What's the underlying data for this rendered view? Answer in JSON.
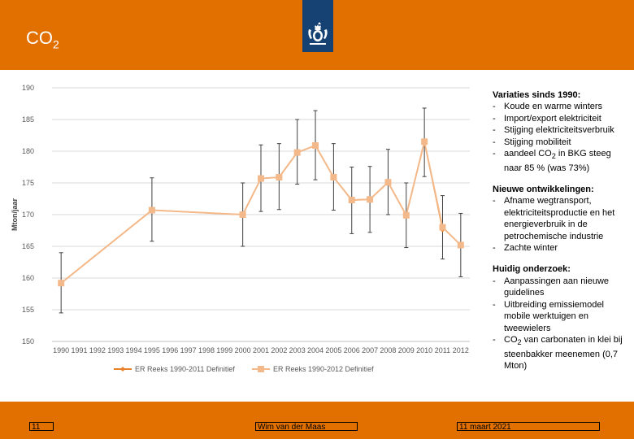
{
  "header": {
    "title_main": "CO",
    "title_sub": "2",
    "brand_color": "#E17000",
    "logo_color": "#154273"
  },
  "chart_data": {
    "type": "line",
    "ylabel": "Mton/jaar",
    "ylim": [
      150,
      190
    ],
    "yticks": [
      150,
      155,
      160,
      165,
      170,
      175,
      180,
      185,
      190
    ],
    "categories": [
      "1990",
      "1991",
      "1992",
      "1993",
      "1994",
      "1995",
      "1996",
      "1997",
      "1998",
      "1999",
      "2000",
      "2001",
      "2002",
      "2003",
      "2004",
      "2005",
      "2006",
      "2007",
      "2008",
      "2009",
      "2010",
      "2011",
      "2012"
    ],
    "series": [
      {
        "name": "ER Reeks 1990-2011 Definitief",
        "color": "#E8822A",
        "points": [
          {
            "x": "1990",
            "y": 159.2
          },
          {
            "x": "1995",
            "y": 170.7
          },
          {
            "x": "2000",
            "y": 170.0
          },
          {
            "x": "2001",
            "y": 175.7
          },
          {
            "x": "2002",
            "y": 175.9
          },
          {
            "x": "2003",
            "y": 179.8
          },
          {
            "x": "2004",
            "y": 180.9
          },
          {
            "x": "2005",
            "y": 175.9
          },
          {
            "x": "2006",
            "y": 172.3
          },
          {
            "x": "2007",
            "y": 172.4
          },
          {
            "x": "2008",
            "y": 175.1
          },
          {
            "x": "2009",
            "y": 169.9
          },
          {
            "x": "2010",
            "y": 181.5
          },
          {
            "x": "2011",
            "y": 167.6
          }
        ]
      },
      {
        "name": "ER Reeks 1990-2012 Definitief",
        "color": "#F4B98A",
        "points": [
          {
            "x": "1990",
            "y": 159.2
          },
          {
            "x": "1995",
            "y": 170.7
          },
          {
            "x": "2000",
            "y": 170.0
          },
          {
            "x": "2001",
            "y": 175.7
          },
          {
            "x": "2002",
            "y": 175.9
          },
          {
            "x": "2003",
            "y": 179.8
          },
          {
            "x": "2004",
            "y": 180.9
          },
          {
            "x": "2005",
            "y": 175.9
          },
          {
            "x": "2006",
            "y": 172.3
          },
          {
            "x": "2007",
            "y": 172.4
          },
          {
            "x": "2008",
            "y": 175.1
          },
          {
            "x": "2009",
            "y": 169.9
          },
          {
            "x": "2010",
            "y": 181.5
          },
          {
            "x": "2011",
            "y": 168.0
          },
          {
            "x": "2012",
            "y": 165.2
          }
        ]
      }
    ],
    "error_bars": [
      {
        "x": "1990",
        "low": 154.5,
        "high": 164.0
      },
      {
        "x": "1995",
        "low": 165.8,
        "high": 175.8
      },
      {
        "x": "2000",
        "low": 165.0,
        "high": 175.0
      },
      {
        "x": "2001",
        "low": 170.5,
        "high": 181.0
      },
      {
        "x": "2002",
        "low": 170.8,
        "high": 181.2
      },
      {
        "x": "2003",
        "low": 174.8,
        "high": 185.0
      },
      {
        "x": "2004",
        "low": 175.5,
        "high": 186.4
      },
      {
        "x": "2005",
        "low": 170.7,
        "high": 181.2
      },
      {
        "x": "2006",
        "low": 167.0,
        "high": 177.5
      },
      {
        "x": "2007",
        "low": 167.2,
        "high": 177.6
      },
      {
        "x": "2008",
        "low": 170.0,
        "high": 180.3
      },
      {
        "x": "2009",
        "low": 164.8,
        "high": 175.0
      },
      {
        "x": "2010",
        "low": 176.0,
        "high": 186.8
      },
      {
        "x": "2011",
        "low": 163.0,
        "high": 173.0
      },
      {
        "x": "2012",
        "low": 160.2,
        "high": 170.2
      }
    ]
  },
  "notes": {
    "section1": {
      "heading": "Variaties sinds 1990:",
      "items": [
        "Koude en warme winters",
        "Import/export elektriciteit",
        "Stijging elektriciteitsverbruik",
        "Stijging mobiliteit"
      ],
      "last_item_pre": "aandeel CO",
      "last_item_sub": "2",
      "last_item_post": " in BKG steeg naar 85 % (was 73%)"
    },
    "section2": {
      "heading": "Nieuwe ontwikkelingen:",
      "items": [
        "Afname wegtransport, elektriciteitsproductie en het energieverbruik in de petrochemische industrie",
        "Zachte winter"
      ]
    },
    "section3": {
      "heading": "Huidig onderzoek:",
      "items": [
        "Aanpassingen aan nieuwe guidelines",
        "Uitbreiding emissiemodel mobile werktuigen en tweewielers"
      ],
      "last_item_pre": "CO",
      "last_item_sub": "2",
      "last_item_post": " van carbonaten in klei bij steenbakker meenemen (0,7 Mton)"
    }
  },
  "footer": {
    "page_number": "11",
    "author": "Wim van der Maas",
    "date": "11 maart 2021"
  }
}
